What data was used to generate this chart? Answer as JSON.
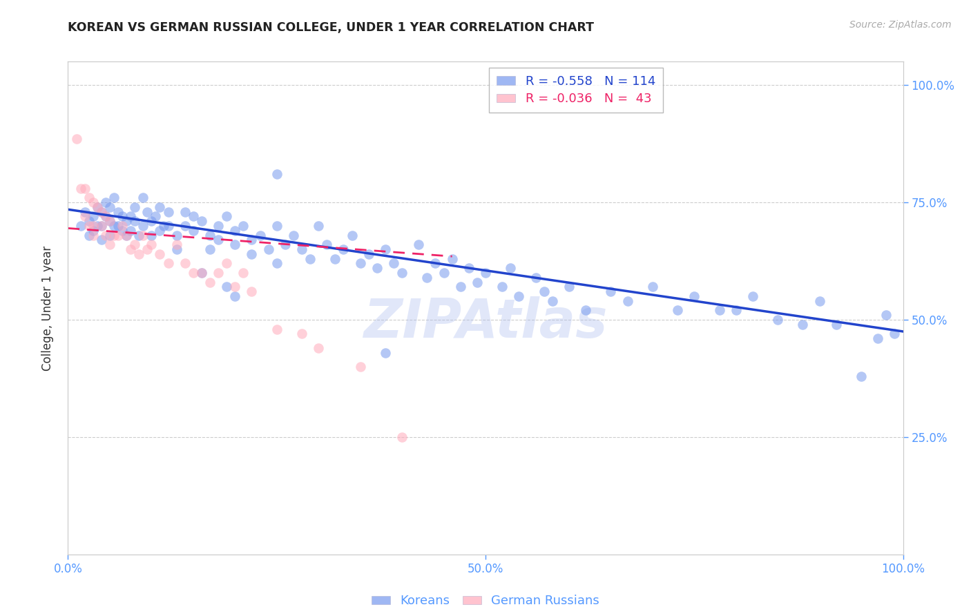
{
  "title": "KOREAN VS GERMAN RUSSIAN COLLEGE, UNDER 1 YEAR CORRELATION CHART",
  "source": "Source: ZipAtlas.com",
  "ylabel": "College, Under 1 year",
  "watermark": "ZIPAtlas",
  "legend_r_korean": "-0.558",
  "legend_n_korean": "114",
  "legend_r_german": "-0.036",
  "legend_n_german": "43",
  "xlim": [
    0.0,
    1.0
  ],
  "ylim": [
    0.0,
    1.05
  ],
  "x_ticks": [
    0.0,
    0.5,
    1.0
  ],
  "x_tick_labels": [
    "0.0%",
    "50.0%",
    "100.0%"
  ],
  "y_ticks": [
    0.25,
    0.5,
    0.75,
    1.0
  ],
  "y_tick_labels_right": [
    "25.0%",
    "50.0%",
    "75.0%",
    "100.0%"
  ],
  "grid_color": "#cccccc",
  "background_color": "#ffffff",
  "title_color": "#222222",
  "axis_color": "#5599ff",
  "korean_color": "#7799ee",
  "german_color": "#ffaabb",
  "trendline_korean_color": "#2244cc",
  "trendline_german_color": "#ee2266",
  "korean_line_x": [
    0.0,
    1.0
  ],
  "korean_line_y": [
    0.735,
    0.475
  ],
  "german_line_x": [
    0.0,
    0.46
  ],
  "german_line_y": [
    0.695,
    0.635
  ],
  "scatter_size": 110,
  "scatter_alpha": 0.55,
  "korean_scatter_x": [
    0.015,
    0.02,
    0.025,
    0.025,
    0.03,
    0.03,
    0.035,
    0.035,
    0.04,
    0.04,
    0.04,
    0.045,
    0.045,
    0.05,
    0.05,
    0.05,
    0.055,
    0.055,
    0.06,
    0.06,
    0.065,
    0.065,
    0.07,
    0.07,
    0.075,
    0.075,
    0.08,
    0.08,
    0.085,
    0.09,
    0.09,
    0.095,
    0.1,
    0.1,
    0.105,
    0.11,
    0.11,
    0.115,
    0.12,
    0.12,
    0.13,
    0.13,
    0.14,
    0.14,
    0.15,
    0.15,
    0.16,
    0.16,
    0.17,
    0.17,
    0.18,
    0.18,
    0.19,
    0.2,
    0.2,
    0.21,
    0.22,
    0.22,
    0.23,
    0.24,
    0.25,
    0.25,
    0.26,
    0.27,
    0.28,
    0.29,
    0.3,
    0.31,
    0.32,
    0.33,
    0.34,
    0.35,
    0.36,
    0.37,
    0.38,
    0.39,
    0.4,
    0.42,
    0.43,
    0.44,
    0.45,
    0.46,
    0.47,
    0.48,
    0.49,
    0.5,
    0.52,
    0.53,
    0.54,
    0.56,
    0.57,
    0.58,
    0.6,
    0.62,
    0.65,
    0.67,
    0.7,
    0.73,
    0.75,
    0.78,
    0.8,
    0.82,
    0.85,
    0.88,
    0.9,
    0.92,
    0.95,
    0.97,
    0.98,
    0.99,
    0.38,
    0.25,
    0.2,
    0.19
  ],
  "korean_scatter_y": [
    0.7,
    0.73,
    0.71,
    0.68,
    0.72,
    0.69,
    0.74,
    0.7,
    0.73,
    0.7,
    0.67,
    0.75,
    0.72,
    0.74,
    0.71,
    0.68,
    0.76,
    0.7,
    0.73,
    0.7,
    0.72,
    0.69,
    0.71,
    0.68,
    0.72,
    0.69,
    0.74,
    0.71,
    0.68,
    0.76,
    0.7,
    0.73,
    0.71,
    0.68,
    0.72,
    0.69,
    0.74,
    0.7,
    0.73,
    0.7,
    0.68,
    0.65,
    0.73,
    0.7,
    0.72,
    0.69,
    0.71,
    0.6,
    0.68,
    0.65,
    0.7,
    0.67,
    0.72,
    0.69,
    0.66,
    0.7,
    0.67,
    0.64,
    0.68,
    0.65,
    0.7,
    0.62,
    0.66,
    0.68,
    0.65,
    0.63,
    0.7,
    0.66,
    0.63,
    0.65,
    0.68,
    0.62,
    0.64,
    0.61,
    0.65,
    0.62,
    0.6,
    0.66,
    0.59,
    0.62,
    0.6,
    0.63,
    0.57,
    0.61,
    0.58,
    0.6,
    0.57,
    0.61,
    0.55,
    0.59,
    0.56,
    0.54,
    0.57,
    0.52,
    0.56,
    0.54,
    0.57,
    0.52,
    0.55,
    0.52,
    0.52,
    0.55,
    0.5,
    0.49,
    0.54,
    0.49,
    0.38,
    0.46,
    0.51,
    0.47,
    0.43,
    0.81,
    0.55,
    0.57
  ],
  "german_scatter_x": [
    0.01,
    0.015,
    0.02,
    0.02,
    0.025,
    0.025,
    0.03,
    0.03,
    0.03,
    0.035,
    0.04,
    0.04,
    0.045,
    0.045,
    0.05,
    0.05,
    0.055,
    0.06,
    0.065,
    0.07,
    0.075,
    0.08,
    0.085,
    0.09,
    0.095,
    0.1,
    0.11,
    0.12,
    0.13,
    0.14,
    0.15,
    0.16,
    0.17,
    0.18,
    0.19,
    0.2,
    0.21,
    0.22,
    0.25,
    0.28,
    0.3,
    0.35,
    0.4
  ],
  "german_scatter_y": [
    0.885,
    0.78,
    0.78,
    0.72,
    0.76,
    0.7,
    0.75,
    0.7,
    0.68,
    0.74,
    0.73,
    0.7,
    0.72,
    0.68,
    0.71,
    0.66,
    0.68,
    0.68,
    0.7,
    0.68,
    0.65,
    0.66,
    0.64,
    0.68,
    0.65,
    0.66,
    0.64,
    0.62,
    0.66,
    0.62,
    0.6,
    0.6,
    0.58,
    0.6,
    0.62,
    0.57,
    0.6,
    0.56,
    0.48,
    0.47,
    0.44,
    0.4,
    0.25
  ]
}
